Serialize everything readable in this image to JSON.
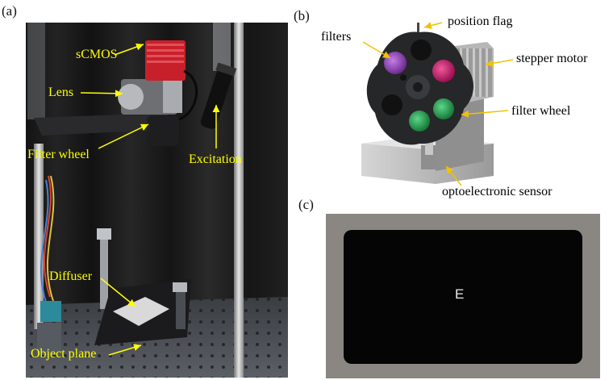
{
  "panels": {
    "a": {
      "label": "(a)",
      "annotations": {
        "scmos": "sCMOS",
        "lens": "Lens",
        "filter_wheel": "Filter wheel",
        "excitation": "Excitation",
        "diffuser": "Diffuser",
        "object_plane": "Object plane"
      }
    },
    "b": {
      "label": "(b)",
      "annotations": {
        "position_flag": "position flag",
        "filters": "filters",
        "stepper_motor": "stepper motor",
        "filter_wheel": "filter wheel",
        "optoelectronic_sensor": "optoelectronic sensor"
      }
    },
    "c": {
      "label": "(c)",
      "target_letter": "E"
    }
  },
  "colors": {
    "annotation_yellow": "#ffff00",
    "camera_red": "#c8202a",
    "filter_purple": "#8a3bb0",
    "filter_magenta": "#c2186b",
    "filter_green": "#1f9a4a"
  }
}
